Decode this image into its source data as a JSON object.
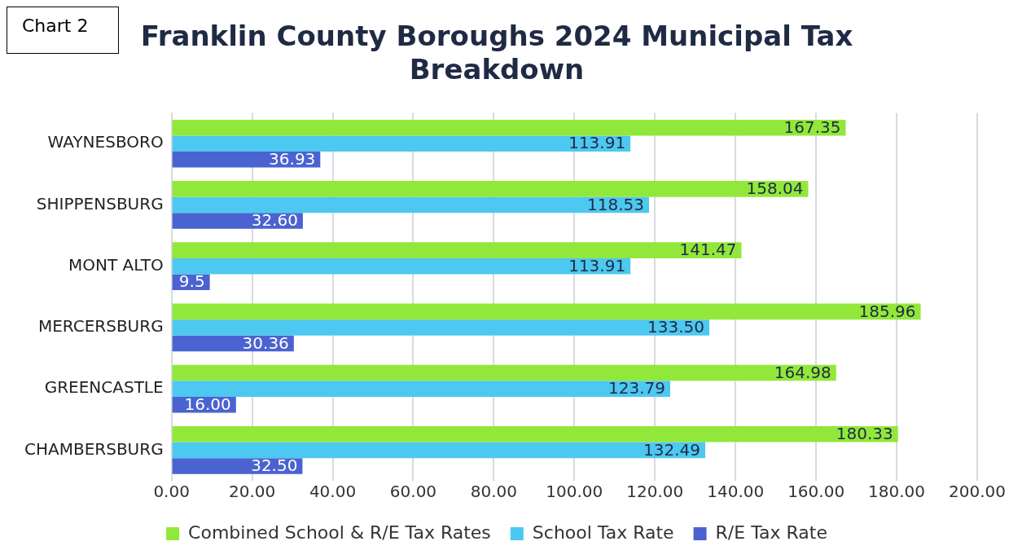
{
  "chart_data": {
    "type": "bar",
    "orientation": "horizontal",
    "title": "Franklin County Boroughs 2024 Municipal Tax Breakdown",
    "annotations": [
      "Chart 2"
    ],
    "categories": [
      "WAYNESBORO",
      "SHIPPENSBURG",
      "MONT ALTO",
      "MERCERSBURG",
      "GREENCASTLE",
      "CHAMBERSBURG"
    ],
    "series": [
      {
        "name": "Combined School & R/E Tax Rates",
        "color": "#92e83a",
        "values": [
          167.35,
          158.04,
          141.47,
          185.96,
          164.98,
          180.33
        ],
        "value_labels": [
          "167.35",
          "158.04",
          "141.47",
          "185.96",
          "164.98",
          "180.33"
        ]
      },
      {
        "name": "School Tax Rate",
        "color": "#4dc8f0",
        "values": [
          113.91,
          118.53,
          113.91,
          133.5,
          123.79,
          132.49
        ],
        "value_labels": [
          "113.91",
          "118.53",
          "113.91",
          "133.50",
          "123.79",
          "132.49"
        ]
      },
      {
        "name": "R/E Tax Rate",
        "color": "#4a63d0",
        "values": [
          36.93,
          32.6,
          9.5,
          30.36,
          16.0,
          32.5
        ],
        "value_labels": [
          "36.93",
          "32.60",
          "9.5",
          "30.36",
          "16.00",
          "32.50"
        ]
      }
    ],
    "xlim": [
      0,
      200
    ],
    "xticks": [
      {
        "value": 0,
        "label": "0.00"
      },
      {
        "value": 20,
        "label": "20.00"
      },
      {
        "value": 40,
        "label": "40.00"
      },
      {
        "value": 60,
        "label": "60.00"
      },
      {
        "value": 80,
        "label": "80.00"
      },
      {
        "value": 100,
        "label": "100.00"
      },
      {
        "value": 120,
        "label": "120.00"
      },
      {
        "value": 140,
        "label": "140.00"
      },
      {
        "value": 160,
        "label": "160.00"
      },
      {
        "value": 180,
        "label": "180.00"
      },
      {
        "value": 200,
        "label": "200.00"
      }
    ],
    "grid": "x",
    "legend": "bottom"
  }
}
